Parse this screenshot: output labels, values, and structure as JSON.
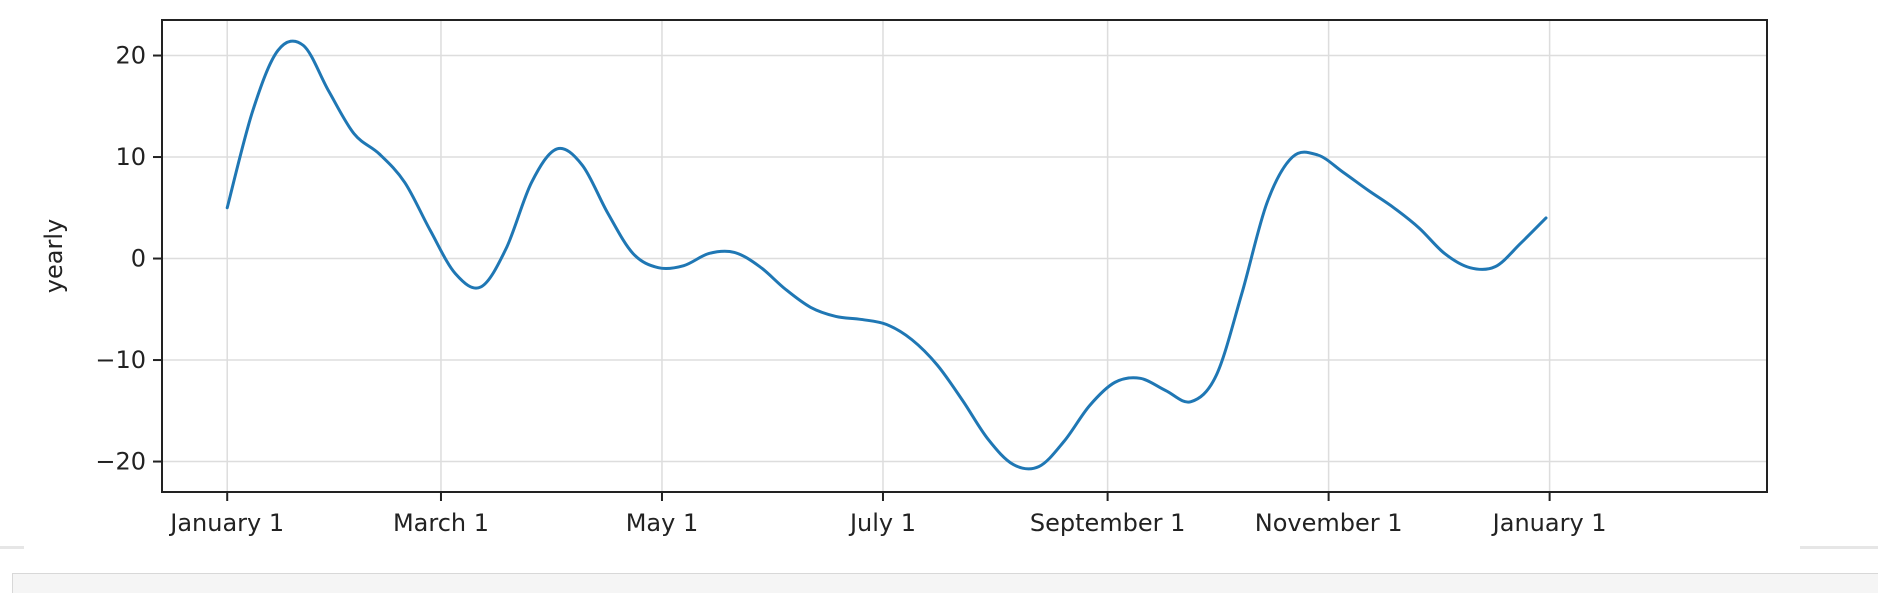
{
  "chart_data": {
    "type": "line",
    "title": "",
    "xlabel": "",
    "ylabel": "yearly",
    "xlim": [
      "2017-12-14",
      "2019-03-02"
    ],
    "ylim": [
      -23.0,
      23.5
    ],
    "yticks": [
      -20,
      -10,
      0,
      10,
      20
    ],
    "xticks": [
      {
        "date": "2018-01-01",
        "label": "January 1"
      },
      {
        "date": "2018-03-01",
        "label": "March 1"
      },
      {
        "date": "2018-05-01",
        "label": "May 1"
      },
      {
        "date": "2018-07-01",
        "label": "July 1"
      },
      {
        "date": "2018-09-01",
        "label": "September 1"
      },
      {
        "date": "2018-11-01",
        "label": "November 1"
      },
      {
        "date": "2019-01-01",
        "label": "January 1"
      }
    ],
    "grid": true,
    "line_color": "#1f77b4",
    "series": [
      {
        "x": [
          "2018-01-01",
          "2018-01-08",
          "2018-01-15",
          "2018-01-22",
          "2018-01-29",
          "2018-02-05",
          "2018-02-12",
          "2018-02-19",
          "2018-02-26",
          "2018-03-05",
          "2018-03-12",
          "2018-03-19",
          "2018-03-26",
          "2018-04-02",
          "2018-04-09",
          "2018-04-16",
          "2018-04-23",
          "2018-04-30",
          "2018-05-07",
          "2018-05-14",
          "2018-05-21",
          "2018-05-28",
          "2018-06-04",
          "2018-06-11",
          "2018-06-18",
          "2018-06-25",
          "2018-07-02",
          "2018-07-09",
          "2018-07-16",
          "2018-07-23",
          "2018-07-30",
          "2018-08-06",
          "2018-08-13",
          "2018-08-20",
          "2018-08-27",
          "2018-09-03",
          "2018-09-10",
          "2018-09-17",
          "2018-09-24",
          "2018-10-01",
          "2018-10-08",
          "2018-10-15",
          "2018-10-22",
          "2018-10-29",
          "2018-11-05",
          "2018-11-12",
          "2018-11-19",
          "2018-11-26",
          "2018-12-03",
          "2018-12-10",
          "2018-12-17",
          "2018-12-24",
          "2018-12-31"
        ],
        "y": [
          5.0,
          14.5,
          20.5,
          21.0,
          16.5,
          12.3,
          10.3,
          7.5,
          2.8,
          -1.5,
          -2.8,
          1.0,
          7.5,
          10.8,
          9.2,
          4.5,
          0.5,
          -0.9,
          -0.7,
          0.5,
          0.6,
          -0.8,
          -3.0,
          -4.8,
          -5.7,
          -6.0,
          -6.5,
          -8.0,
          -10.5,
          -14.0,
          -17.8,
          -20.3,
          -20.5,
          -18.0,
          -14.5,
          -12.2,
          -11.8,
          -13.0,
          -14.1,
          -11.5,
          -3.5,
          5.5,
          10.0,
          10.2,
          8.5,
          6.7,
          5.0,
          3.0,
          0.5,
          -0.9,
          -0.8,
          1.5,
          4.0
        ]
      }
    ]
  }
}
